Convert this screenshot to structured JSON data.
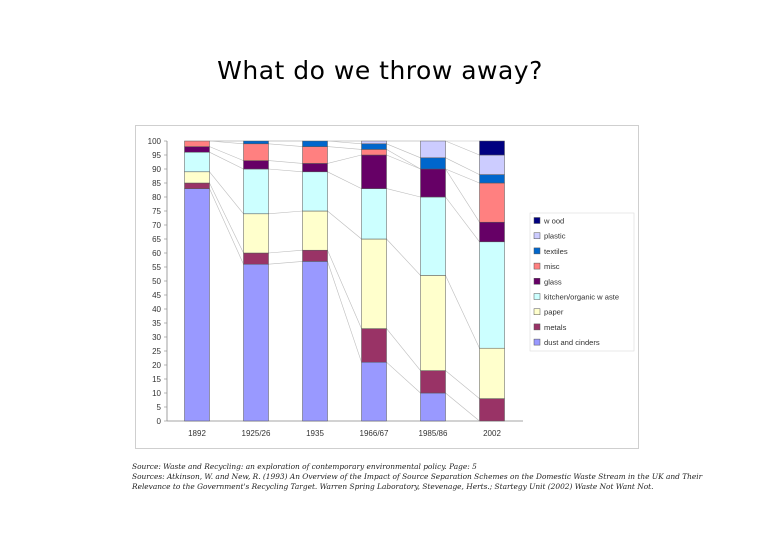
{
  "slide": {
    "title": "What do we throw away?"
  },
  "sources": {
    "line1": "Source: Waste and Recycling: an exploration of contemporary environmental policy. Page: 5",
    "line2": "Sources: Atkinson, W. and New, R. (1993) An Overview of the Impact of Source Separation Schemes on the Domestic Waste Stream in the UK and Their",
    "line3": "Relevance to the Government's Recycling Target. Warren Spring Laboratory, Stevenage, Herts.; Startegy Unit (2002) Waste Not Want Not."
  },
  "chart_data": {
    "type": "bar",
    "stacked": true,
    "title": "",
    "xlabel": "",
    "ylabel": "",
    "ylim": [
      0,
      100
    ],
    "yticks": [
      0,
      5,
      10,
      15,
      20,
      25,
      30,
      35,
      40,
      45,
      50,
      55,
      60,
      65,
      70,
      75,
      80,
      85,
      90,
      95,
      100
    ],
    "grid": false,
    "legend_position": "right",
    "categories": [
      "1892",
      "1925/26",
      "1935",
      "1966/67",
      "1985/86",
      "2002"
    ],
    "series": [
      {
        "name": "dust and cinders",
        "color": "#9999ff",
        "values": [
          83,
          56,
          57,
          21,
          10,
          0
        ]
      },
      {
        "name": "metals",
        "color": "#993366",
        "values": [
          2,
          4,
          4,
          12,
          8,
          8
        ]
      },
      {
        "name": "paper",
        "color": "#ffffcc",
        "values": [
          4,
          14,
          14,
          32,
          34,
          18
        ]
      },
      {
        "name": "kitchen/organic w aste",
        "color": "#ccffff",
        "values": [
          7,
          16,
          14,
          18,
          28,
          38
        ]
      },
      {
        "name": "glass",
        "color": "#660066",
        "values": [
          2,
          3,
          3,
          12,
          10,
          7
        ]
      },
      {
        "name": "misc",
        "color": "#ff8080",
        "values": [
          2,
          6,
          6,
          2,
          0,
          14
        ]
      },
      {
        "name": "textiles",
        "color": "#0066cc",
        "values": [
          0,
          1,
          2,
          2,
          4,
          3
        ]
      },
      {
        "name": "plastic",
        "color": "#ccccff",
        "values": [
          0,
          0,
          0,
          1,
          6,
          7
        ]
      },
      {
        "name": "w ood",
        "color": "#000080",
        "values": [
          0,
          0,
          0,
          0,
          0,
          5
        ]
      }
    ]
  }
}
